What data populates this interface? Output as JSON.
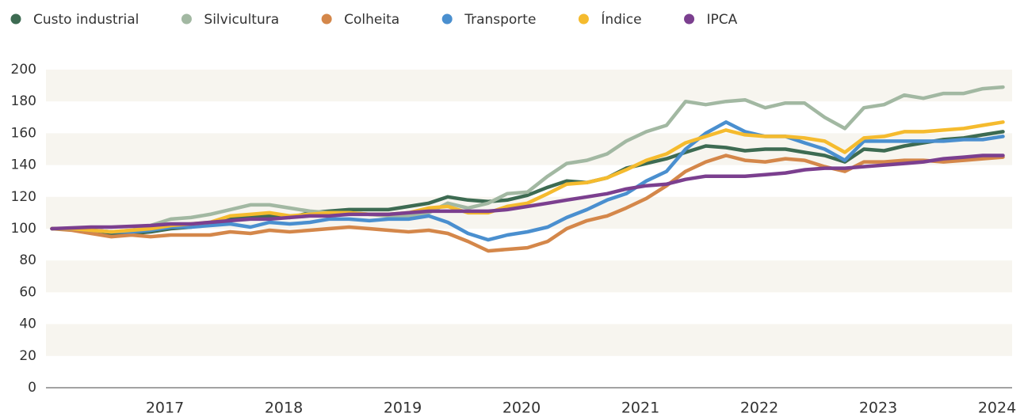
{
  "chart_data": {
    "type": "line",
    "x": [
      2016.05,
      2016.22,
      2016.38,
      2016.55,
      2016.72,
      2016.88,
      2017.05,
      2017.22,
      2017.38,
      2017.55,
      2017.72,
      2017.88,
      2018.05,
      2018.22,
      2018.38,
      2018.55,
      2018.72,
      2018.88,
      2019.05,
      2019.22,
      2019.38,
      2019.55,
      2019.72,
      2019.88,
      2020.05,
      2020.22,
      2020.38,
      2020.55,
      2020.72,
      2020.88,
      2021.05,
      2021.22,
      2021.38,
      2021.55,
      2021.72,
      2021.88,
      2022.05,
      2022.22,
      2022.38,
      2022.55,
      2022.72,
      2022.88,
      2023.05,
      2023.22,
      2023.38,
      2023.55,
      2023.72,
      2023.88,
      2024.05
    ],
    "xlim": [
      2016,
      2024.1
    ],
    "xticks": [
      2017,
      2018,
      2019,
      2020,
      2021,
      2022,
      2023,
      2024
    ],
    "ylim": [
      0,
      200
    ],
    "yticks": [
      0,
      20,
      40,
      60,
      80,
      100,
      120,
      140,
      160,
      180,
      200
    ],
    "grid": "bands",
    "legend": "top",
    "series": [
      {
        "name": "Custo industrial",
        "color": "#3d6b52",
        "values": [
          100,
          100,
          98,
          96,
          97,
          98,
          100,
          101,
          103,
          107,
          108,
          108,
          107,
          110,
          111,
          112,
          112,
          112,
          114,
          116,
          120,
          118,
          117,
          118,
          121,
          126,
          130,
          129,
          132,
          138,
          141,
          144,
          148,
          152,
          151,
          149,
          150,
          150,
          148,
          146,
          142,
          150,
          149,
          152,
          154,
          156,
          157,
          159,
          161
        ]
      },
      {
        "name": "Silvicultura",
        "color": "#a2b8a2",
        "values": [
          100,
          100,
          99,
          98,
          99,
          102,
          106,
          107,
          109,
          112,
          115,
          115,
          113,
          111,
          110,
          110,
          109,
          108,
          108,
          110,
          116,
          113,
          116,
          122,
          123,
          133,
          141,
          143,
          147,
          155,
          161,
          165,
          180,
          178,
          180,
          181,
          176,
          179,
          179,
          170,
          163,
          176,
          178,
          184,
          182,
          185,
          185,
          188,
          189
        ]
      },
      {
        "name": "Colheita",
        "color": "#d4874a",
        "values": [
          100,
          99,
          97,
          95,
          96,
          95,
          96,
          96,
          96,
          98,
          97,
          99,
          98,
          99,
          100,
          101,
          100,
          99,
          98,
          99,
          97,
          92,
          86,
          87,
          88,
          92,
          100,
          105,
          108,
          113,
          119,
          127,
          136,
          142,
          146,
          143,
          142,
          144,
          143,
          139,
          136,
          142,
          142,
          143,
          143,
          142,
          143,
          144,
          145
        ]
      },
      {
        "name": "Transporte",
        "color": "#4a8fcf",
        "values": [
          100,
          100,
          99,
          98,
          98,
          99,
          101,
          101,
          102,
          103,
          101,
          104,
          103,
          104,
          106,
          106,
          105,
          106,
          106,
          108,
          104,
          97,
          93,
          96,
          98,
          101,
          107,
          112,
          118,
          122,
          130,
          136,
          150,
          160,
          167,
          161,
          158,
          158,
          154,
          150,
          143,
          155,
          155,
          155,
          155,
          155,
          156,
          156,
          158
        ]
      },
      {
        "name": "Índice",
        "color": "#f5bb2e",
        "values": [
          100,
          100,
          99,
          98,
          99,
          100,
          102,
          103,
          104,
          108,
          109,
          110,
          108,
          109,
          110,
          110,
          109,
          109,
          110,
          113,
          114,
          110,
          110,
          114,
          116,
          122,
          128,
          129,
          132,
          137,
          143,
          147,
          154,
          158,
          162,
          159,
          158,
          158,
          157,
          155,
          148,
          157,
          158,
          161,
          161,
          162,
          163,
          165,
          167
        ]
      },
      {
        "name": "IPCA",
        "color": "#7b3f8f",
        "values": [
          100,
          100.5,
          101,
          101,
          101.5,
          102,
          103,
          103,
          104,
          105,
          106,
          106,
          107,
          108,
          108,
          109,
          109,
          109,
          110,
          111,
          111,
          111,
          111,
          112,
          114,
          116,
          118,
          120,
          122,
          125,
          127,
          128,
          131,
          133,
          133,
          133,
          134,
          135,
          137,
          138,
          138,
          139,
          140,
          141,
          142,
          144,
          145,
          146,
          146
        ]
      }
    ]
  }
}
